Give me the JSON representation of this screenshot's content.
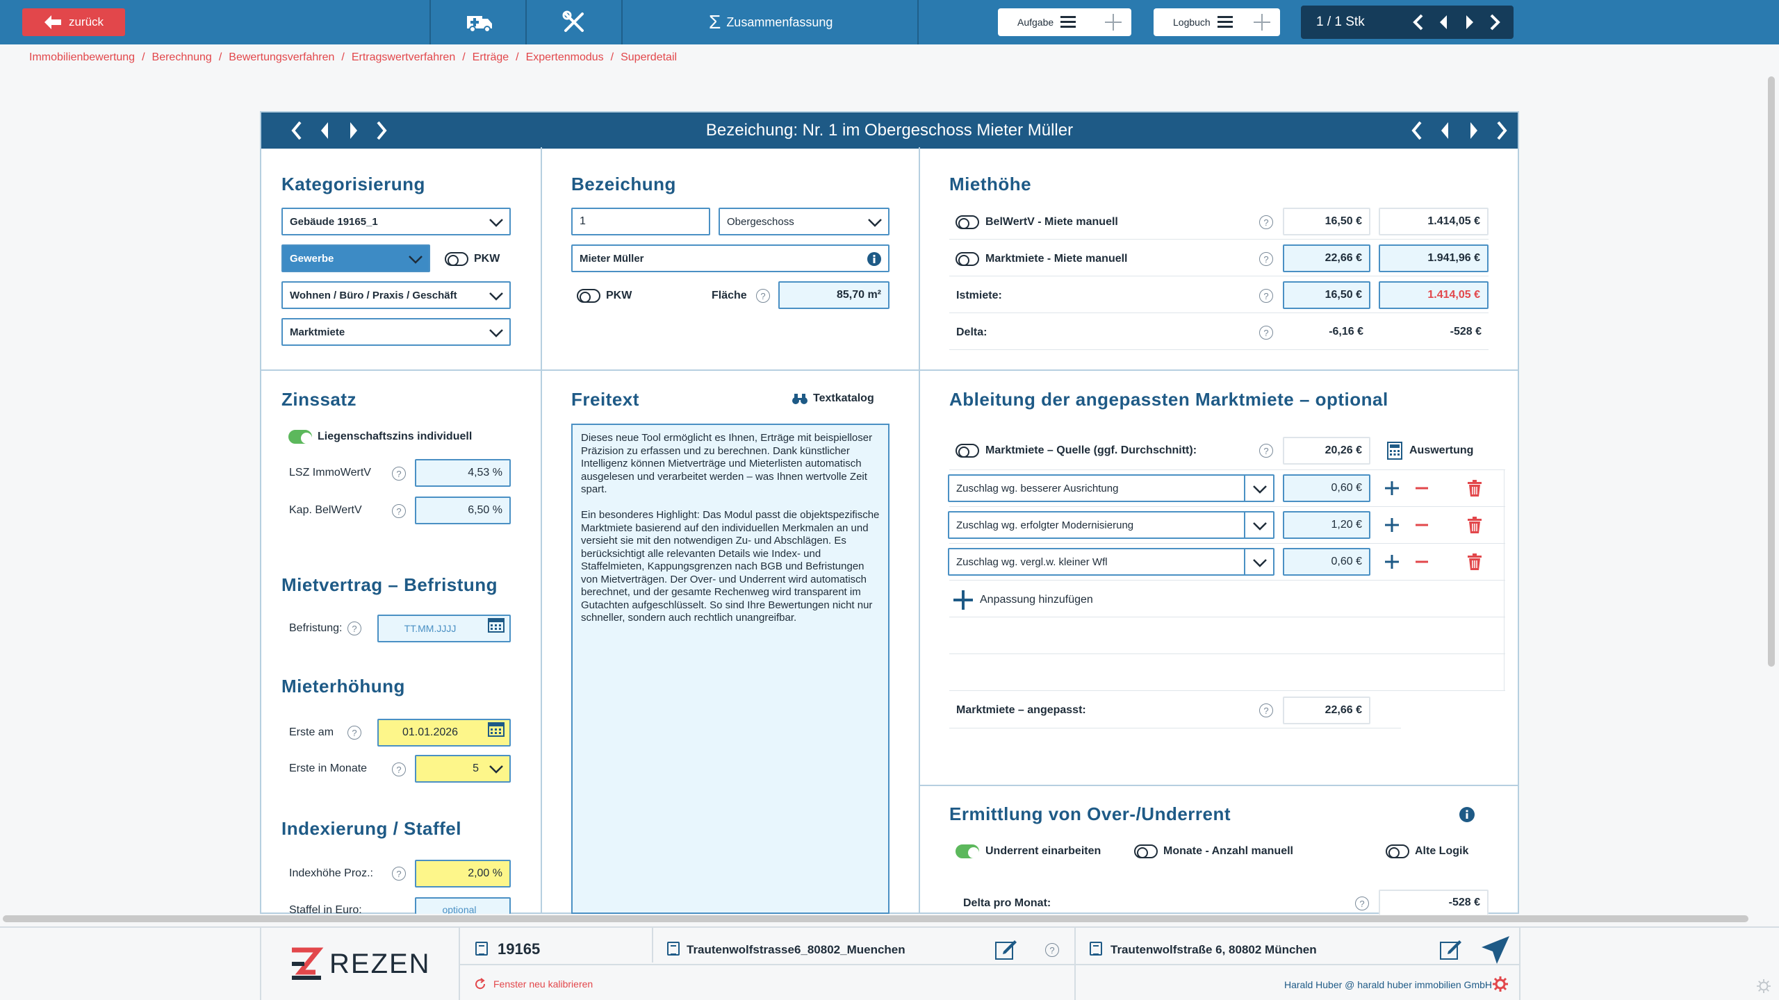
{
  "topbar": {
    "back_label": "zurück",
    "summary_label": "Zusammenfassung",
    "task_label": "Aufgabe",
    "log_label": "Logbuch",
    "pager_text": "1 /  1 Stk"
  },
  "breadcrumb": [
    "Immobilienbewertung",
    "Berechnung",
    "Bewertungsverfahren",
    "Ertragswertverfahren",
    "Erträge",
    "Expertenmodus",
    "Superdetail"
  ],
  "panel": {
    "title": "Bezeichung: Nr. 1 im Obergeschoss Mieter Müller"
  },
  "kategorisierung": {
    "title": "Kategorisierung",
    "building": "Gebäude 19165_1",
    "type": "Gewerbe",
    "pkw_label": "PKW",
    "usage": "Wohnen / Büro / Praxis / Geschäft",
    "rent_type": "Marktmiete"
  },
  "bezeichnung": {
    "title": "Bezeichung",
    "number": "1",
    "floor": "Obergeschoss",
    "tenant": "Mieter Müller",
    "pkw_label": "PKW",
    "area_label": "Fläche",
    "area_value": "85,70 m²"
  },
  "miethoehe": {
    "title": "Miethöhe",
    "rows": [
      {
        "label": "BelWertV - Miete manuell",
        "v1": "16,50 €",
        "v2": "1.414,05 €"
      },
      {
        "label": "Marktmiete - Miete manuell",
        "v1": "22,66 €",
        "v2": "1.941,96 €"
      },
      {
        "label": "Istmiete:",
        "v1": "16,50 €",
        "v2": "1.414,05 €"
      },
      {
        "label": "Delta:",
        "v1": "-6,16 €",
        "v2": "-528 €"
      }
    ]
  },
  "zinssatz": {
    "title": "Zinssatz",
    "toggle_label": "Liegenschaftszins individuell",
    "lsz_label": "LSZ ImmoWertV",
    "lsz_value": "4,53 %",
    "kap_label": "Kap. BelWertV",
    "kap_value": "6,50 %"
  },
  "freitext": {
    "title": "Freitext",
    "catalog_label": "Textkatalog",
    "text": "Dieses neue Tool ermöglicht es Ihnen, Erträge mit beispielloser Präzision zu erfassen und zu berechnen. Dank künstlicher Intelligenz können Mietverträge und Mieterlisten automatisch ausgelesen und verarbeitet werden – was Ihnen wertvolle Zeit spart.\n\nEin besonderes Highlight: Das Modul passt die objektspezifische Marktmiete basierend auf den individuellen Merkmalen an und versieht sie mit den notwendigen Zu- und Abschlägen. Es berücksichtigt alle relevanten Details wie Index- und Staffelmieten, Kappungsgrenzen nach BGB und Befristungen von Mietverträgen. Der Over- und Underrent wird automatisch berechnet, und der gesamte Rechenweg wird transparent im Gutachten aufgeschlüsselt. So sind Ihre Bewertungen nicht nur schneller, sondern auch rechtlich unangreifbar."
  },
  "ableitung": {
    "title": "Ableitung der angepassten Marktmiete – optional",
    "source_label": "Marktmiete – Quelle (ggf. Durchschnitt):",
    "source_value": "20,26 €",
    "evaluation_label": "Auswertung",
    "adjustments": [
      {
        "label": "Zuschlag wg. besserer Ausrichtung",
        "value": "0,60 €"
      },
      {
        "label": "Zuschlag wg. erfolgter Modernisierung",
        "value": "1,20 €"
      },
      {
        "label": "Zuschlag wg. vergl.w. kleiner Wfl",
        "value": "0,60 €"
      }
    ],
    "add_label": "Anpassung hinzufügen",
    "adjusted_label": "Marktmiete – angepasst:",
    "adjusted_value": "22,66 €"
  },
  "mietvertrag": {
    "title": "Mietvertrag – Befristung",
    "label": "Befristung:",
    "placeholder": "TT.MM.JJJJ"
  },
  "mieterhoehung": {
    "title": "Mieterhöhung",
    "first_label": "Erste am",
    "first_value": "01.01.2026",
    "months_label": "Erste in Monate",
    "months_value": "5"
  },
  "indexierung": {
    "title": "Indexierung / Staffel",
    "index_label": "Indexhöhe Proz.:",
    "index_value": "2,00 %",
    "staffel_label": "Staffel in Euro:",
    "staffel_placeholder": "optional"
  },
  "overunder": {
    "title": "Ermittlung von Over-/Underrent",
    "toggle1": "Underrent einarbeiten",
    "toggle2": "Monate - Anzahl manuell",
    "toggle3": "Alte Logik",
    "delta_label": "Delta pro Monat:",
    "delta_value": "-528 €"
  },
  "footer": {
    "logo_text": "REZEN",
    "id": "19165",
    "recalibrate": "Fenster neu kalibrieren",
    "project": "Trautenwolfstrasse6_80802_Muenchen",
    "address": "Trautenwolfstraße 6, 80802 München",
    "user": "Harald Huber @ harald huber immobilien GmbH"
  },
  "colors": {
    "accent": "#2a7aaf",
    "header": "#1e5a86",
    "danger": "#e2474b",
    "input_bg": "#e8f6fd",
    "highlight": "#fdf68a"
  }
}
